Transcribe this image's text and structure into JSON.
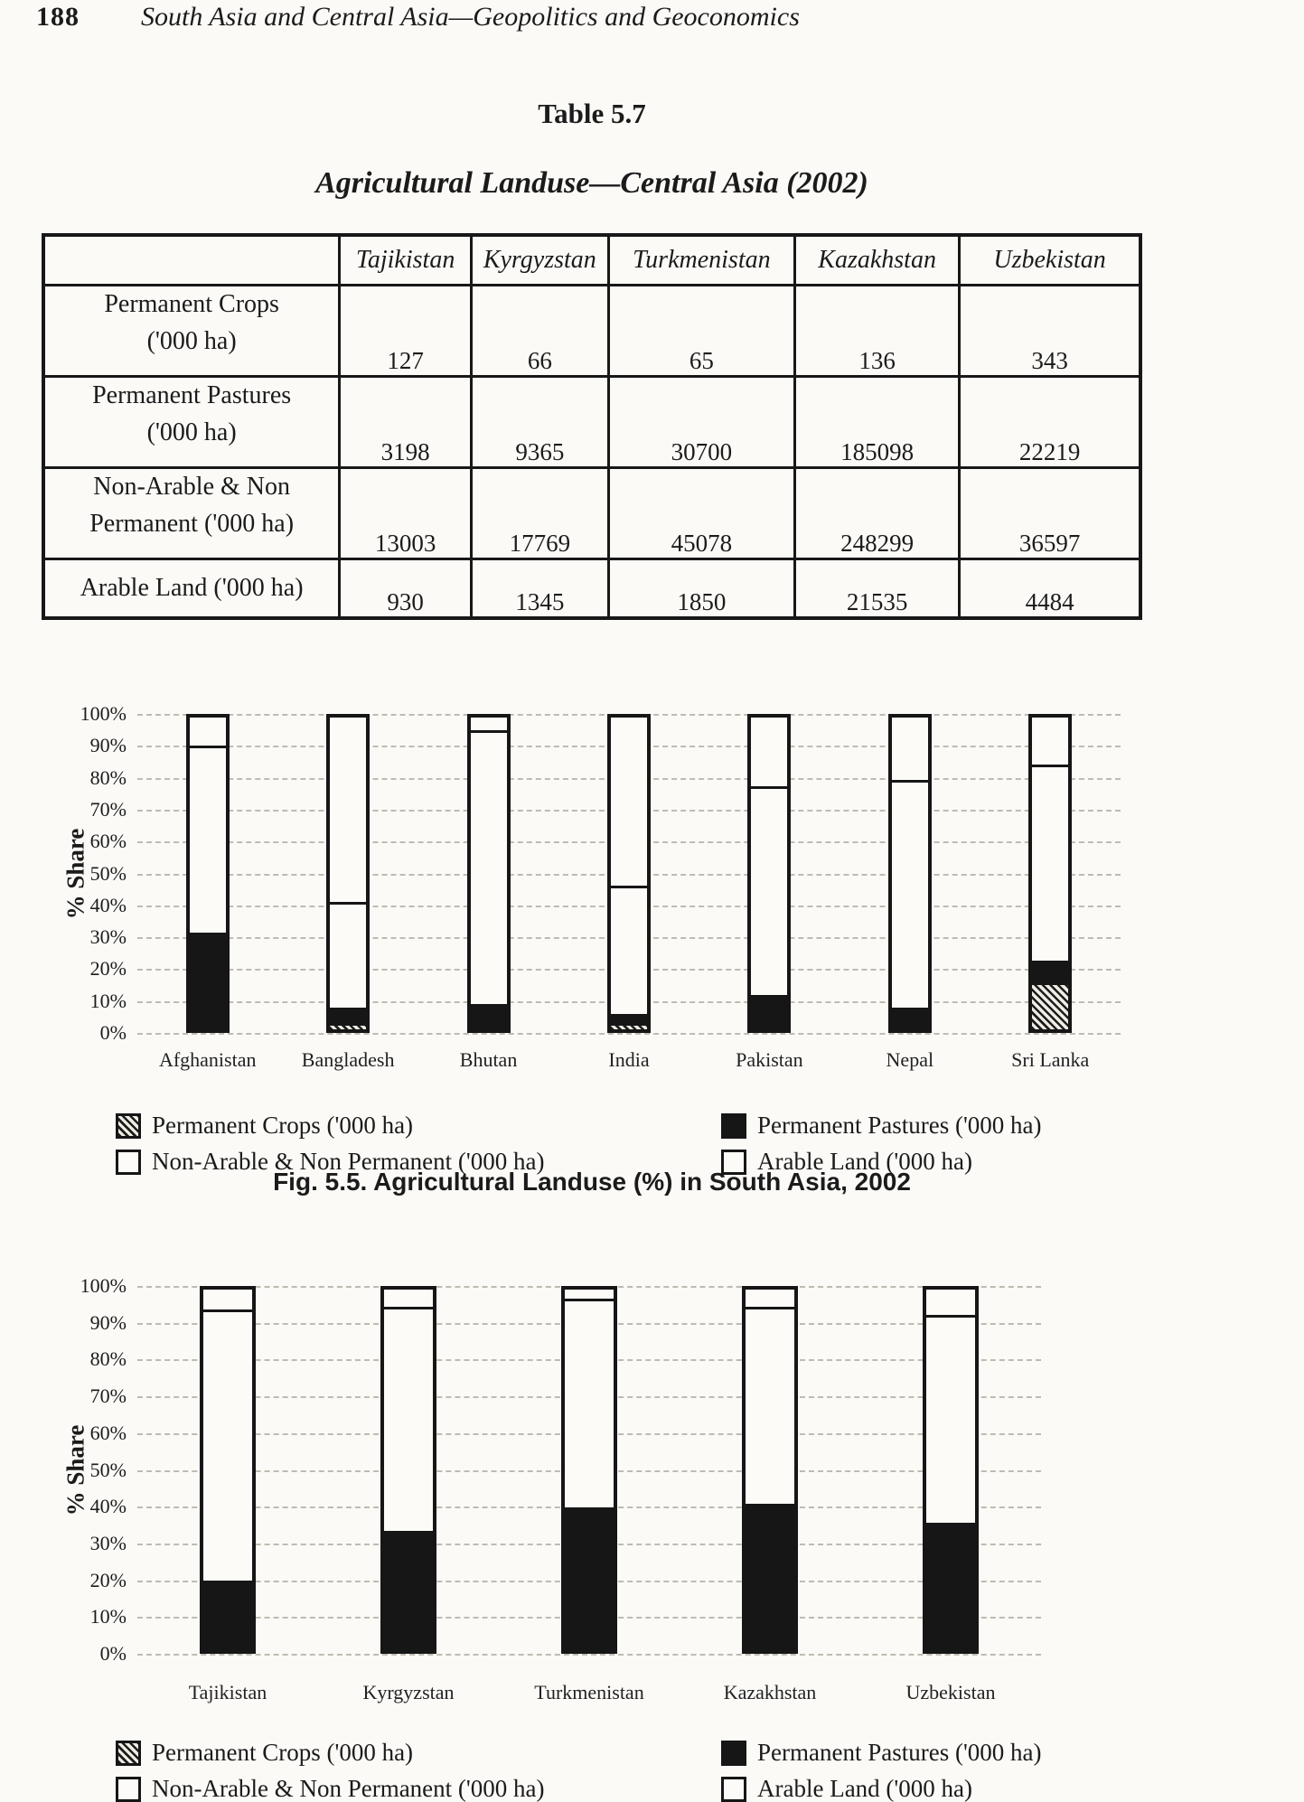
{
  "page": {
    "page_number": "188",
    "running_title": "South Asia and Central Asia—Geopolitics and Geoconomics"
  },
  "table": {
    "label": "Table 5.7",
    "title": "Agricultural Landuse—Central Asia (2002)",
    "columns": [
      "Tajikistan",
      "Kyrgyzstan",
      "Turkmenistan",
      "Kazakhstan",
      "Uzbekistan"
    ],
    "rows": [
      {
        "label_lines": [
          "Permanent Crops",
          "('000 ha)"
        ],
        "values": [
          "127",
          "66",
          "65",
          "136",
          "343"
        ]
      },
      {
        "label_lines": [
          "Permanent Pastures",
          "('000 ha)"
        ],
        "values": [
          "3198",
          "9365",
          "30700",
          "185098",
          "22219"
        ]
      },
      {
        "label_lines": [
          "Non-Arable & Non",
          "Permanent ('000 ha)"
        ],
        "values": [
          "13003",
          "17769",
          "45078",
          "248299",
          "36597"
        ]
      },
      {
        "label_lines": [
          "Arable Land ('000 ha)"
        ],
        "values": [
          "930",
          "1345",
          "1850",
          "21535",
          "4484"
        ]
      }
    ]
  },
  "figure": {
    "caption": "Fig. 5.5. Agricultural Landuse (%) in South Asia, 2002"
  },
  "chart_data": [
    {
      "type": "bar",
      "stacked": true,
      "region": "South Asia",
      "year": 2002,
      "title": "Agricultural Landuse (%) in South Asia, 2002",
      "xlabel": "",
      "ylabel": "% Share",
      "ylim": [
        0,
        100
      ],
      "yticks": [
        "100%",
        "90%",
        "80%",
        "70%",
        "60%",
        "50%",
        "40%",
        "30%",
        "20%",
        "10%",
        "0%"
      ],
      "grid": "dashed-horizontal",
      "legend_position": "below",
      "values_unit": "percent share of total (estimated from figure)",
      "categories": [
        "Afghanistan",
        "Bangladesh",
        "Bhutan",
        "India",
        "Pakistan",
        "Nepal",
        "Sri Lanka"
      ],
      "series": [
        {
          "name": "Permanent Crops ('000 ha)",
          "swatch": "hatch",
          "values": [
            1,
            2,
            1,
            2,
            1,
            1,
            15
          ]
        },
        {
          "name": "Permanent Pastures ('000 ha)",
          "swatch": "black",
          "values": [
            30,
            5,
            7,
            3,
            10,
            6,
            7
          ]
        },
        {
          "name": "Non-Arable & Non Permanent ('000 ha)",
          "swatch": "white",
          "values": [
            60,
            34,
            88,
            41,
            67,
            73,
            63
          ]
        },
        {
          "name": "Arable Land ('000 ha)",
          "swatch": "white",
          "values": [
            9,
            59,
            4,
            54,
            22,
            20,
            15
          ]
        }
      ]
    },
    {
      "type": "bar",
      "stacked": true,
      "region": "Central Asia",
      "year": 2002,
      "title": "Agricultural Landuse (%) in Central Asia, 2002",
      "xlabel": "",
      "ylabel": "% Share",
      "ylim": [
        0,
        100
      ],
      "yticks": [
        "100%",
        "90%",
        "80%",
        "70%",
        "60%",
        "50%",
        "40%",
        "30%",
        "20%",
        "10%",
        "0%"
      ],
      "grid": "dashed-horizontal",
      "legend_position": "below",
      "values_unit": "percent share of total (computed from Table 5.7)",
      "categories": [
        "Tajikistan",
        "Kyrgyzstan",
        "Turkmenistan",
        "Kazakhstan",
        "Uzbekistan"
      ],
      "series": [
        {
          "name": "Permanent Crops ('000 ha)",
          "swatch": "hatch",
          "values": [
            0.7,
            0.2,
            0.1,
            0.1,
            0.5
          ]
        },
        {
          "name": "Permanent Pastures ('000 ha)",
          "swatch": "black",
          "values": [
            18.5,
            32.8,
            39.5,
            40.6,
            34.9
          ]
        },
        {
          "name": "Non-Arable & Non Permanent ('000 ha)",
          "swatch": "white",
          "values": [
            75.4,
            62.3,
            58.0,
            54.6,
            57.6
          ]
        },
        {
          "name": "Arable Land ('000 ha)",
          "swatch": "white",
          "values": [
            5.4,
            4.7,
            2.4,
            4.7,
            7.0
          ]
        }
      ]
    }
  ]
}
